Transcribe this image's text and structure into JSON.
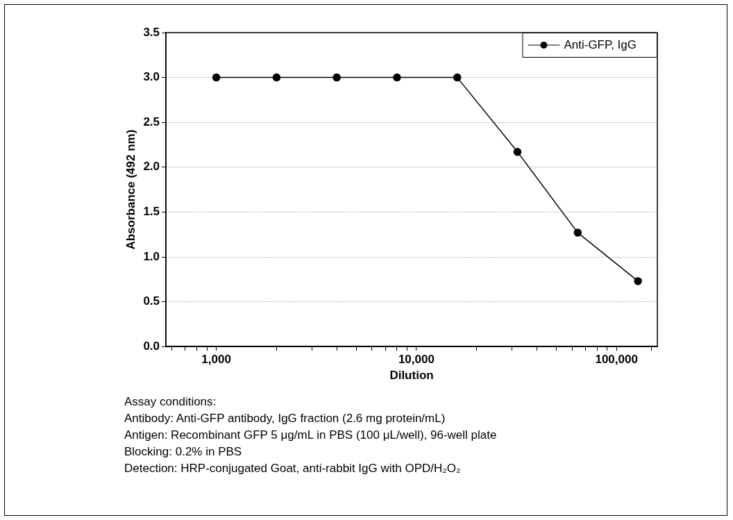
{
  "chart_data": {
    "type": "line",
    "xlabel": "Dilution",
    "ylabel": "Absorbance (492 nm)",
    "x": [
      1000,
      2000,
      4000,
      8000,
      16000,
      32000,
      64000,
      128000
    ],
    "series": [
      {
        "name": "Anti-GFP, IgG",
        "color": "#000000",
        "values": [
          3.0,
          3.0,
          3.0,
          3.0,
          3.0,
          2.17,
          1.27,
          0.73
        ]
      }
    ],
    "log": "x",
    "xlim": [
      560,
      160000
    ],
    "xticks": [
      {
        "value": 600,
        "label": null
      },
      {
        "value": 700,
        "label": null
      },
      {
        "value": 800,
        "label": null
      },
      {
        "value": 900,
        "label": null
      },
      {
        "value": 1000,
        "label": "1,000"
      },
      {
        "value": 2000,
        "label": null
      },
      {
        "value": 3000,
        "label": null
      },
      {
        "value": 4000,
        "label": null
      },
      {
        "value": 5000,
        "label": null
      },
      {
        "value": 6000,
        "label": null
      },
      {
        "value": 7000,
        "label": null
      },
      {
        "value": 8000,
        "label": null
      },
      {
        "value": 9000,
        "label": null
      },
      {
        "value": 10000,
        "label": "10,000"
      },
      {
        "value": 20000,
        "label": null
      },
      {
        "value": 30000,
        "label": null
      },
      {
        "value": 40000,
        "label": null
      },
      {
        "value": 50000,
        "label": null
      },
      {
        "value": 60000,
        "label": null
      },
      {
        "value": 70000,
        "label": null
      },
      {
        "value": 80000,
        "label": null
      },
      {
        "value": 90000,
        "label": null
      },
      {
        "value": 100000,
        "label": "100,000"
      },
      {
        "value": 150000,
        "label": null
      }
    ],
    "ylim": [
      0,
      3.5
    ],
    "yticks": [
      {
        "value": 0,
        "label": "0.0"
      },
      {
        "value": 0.5,
        "label": "0.5"
      },
      {
        "value": 1,
        "label": "1.0"
      },
      {
        "value": 1.5,
        "label": "1.5"
      },
      {
        "value": 2,
        "label": "2.0"
      },
      {
        "value": 2.5,
        "label": "2.5"
      },
      {
        "value": 3,
        "label": "3.0"
      },
      {
        "value": 3.5,
        "label": "3.5"
      }
    ],
    "grid": "y",
    "legend": "top right",
    "marker": "circle",
    "line_style": "solid",
    "annotations": [
      "Assay conditions:",
      "Antibody: Anti-GFP antibody, IgG fraction (2.6 mg protein/mL)",
      "Antigen: Recombinant GFP 5 μg/mL in PBS (100 μL/well), 96-well plate",
      "Blocking: 0.2% in PBS",
      "Detection: HRP-conjugated Goat, anti-rabbit IgG with OPD/H₂O₂"
    ]
  }
}
